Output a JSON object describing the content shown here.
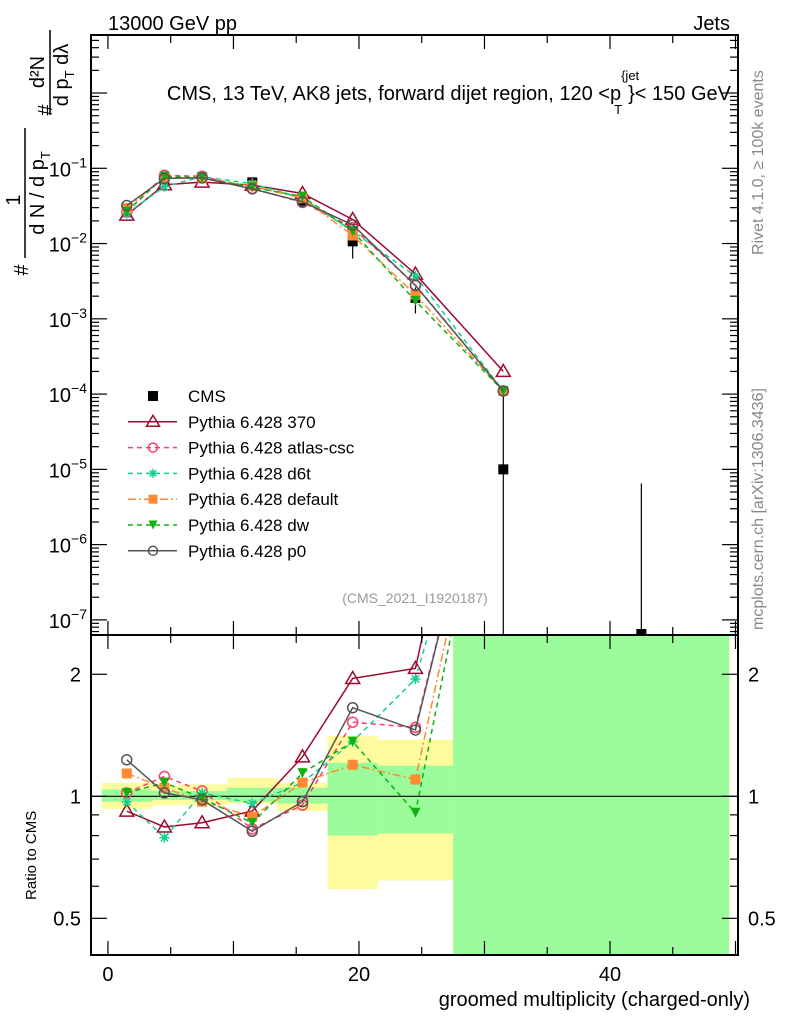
{
  "header": {
    "left": "13000 GeV pp",
    "right": "Jets"
  },
  "side": {
    "rivet": "Rivet 4.1.0, ≥ 100k events",
    "mcplots": "mcplots.cern.ch [arXiv:1306.3436]"
  },
  "analysis_tag": "(CMS_2021_I1920187)",
  "chart_data": {
    "type": "line",
    "title": {
      "pre": "CMS, 13 TeV, AK8 jets, forward dijet region, 120 <p",
      "sup": "{jet",
      "sub": "T",
      "post": "}< 150 GeV"
    },
    "ylabel": {
      "hash1": "#",
      "frac1_num": "1",
      "frac1_den": "d N / d p",
      "frac1_den_sub": "T",
      "hash2": "#",
      "frac2_num": "d²N",
      "frac2_den": "d p",
      "frac2_den_sub": "T",
      "frac2_den_tail": " dλ"
    },
    "xlabel": "groomed multiplicity (charged-only)",
    "ratio_ylabel": "Ratio to CMS",
    "xlim": [
      -1.35,
      50.2
    ],
    "ylim": [
      6.3e-08,
      5.9
    ],
    "yscale": "log",
    "ratio_ylim": [
      0.406,
      2.5
    ],
    "x_ticks": [
      0,
      20,
      40
    ],
    "x_tick_labels": [
      "0",
      "20",
      "40"
    ],
    "y_ticks": [
      {
        "base": "10",
        "exp": "−1",
        "v": 0.1
      },
      {
        "base": "10",
        "exp": "−2",
        "v": 0.01
      },
      {
        "base": "10",
        "exp": "−3",
        "v": 0.001
      },
      {
        "base": "10",
        "exp": "−4",
        "v": 0.0001
      },
      {
        "base": "10",
        "exp": "−5",
        "v": 1e-05
      },
      {
        "base": "10",
        "exp": "−6",
        "v": 1e-06
      },
      {
        "base": "10",
        "exp": "−7",
        "v": 1e-07
      }
    ],
    "ratio_ticks": [
      {
        "v": 2,
        "label": "2"
      },
      {
        "v": 1,
        "label": "1"
      },
      {
        "v": 0.5,
        "label": "0.5"
      }
    ],
    "bin_edges": [
      -0.5,
      3.5,
      5.5,
      9.5,
      13.5,
      17.5,
      21.5,
      27.5,
      35.5,
      49.5
    ],
    "x": [
      1.5,
      4.5,
      7.5,
      11.5,
      15.5,
      19.5,
      24.5,
      31.5,
      42.5
    ],
    "data": {
      "name": "CMS",
      "values": [
        0.026,
        0.072,
        0.076,
        0.065,
        0.037,
        0.0107,
        0.0019,
        1e-05,
        6.5e-08
      ],
      "stat_band": [
        [
          0.97,
          1.04
        ],
        [
          0.98,
          1.03
        ],
        [
          0.98,
          1.03
        ],
        [
          0.97,
          1.05
        ],
        [
          0.96,
          1.05
        ],
        [
          0.8,
          1.21
        ],
        [
          0.81,
          1.19
        ],
        [
          0.0,
          100
        ],
        [
          0.0,
          100
        ]
      ],
      "total_band": [
        [
          0.93,
          1.08
        ],
        [
          0.95,
          1.06
        ],
        [
          0.95,
          1.07
        ],
        [
          0.96,
          1.11
        ],
        [
          0.92,
          1.08
        ],
        [
          0.59,
          1.41
        ],
        [
          0.62,
          1.38
        ],
        [
          0.0,
          11
        ],
        [
          0.0,
          100
        ]
      ]
    },
    "series": [
      {
        "name": "Pythia 6.428 370",
        "color": "#9e0a2e",
        "dash": "",
        "marker": "tri-up-open",
        "values": [
          0.0239,
          0.0605,
          0.0654,
          0.0598,
          0.0463,
          0.0209,
          0.00393,
          0.0002,
          null
        ]
      },
      {
        "name": "Pythia 6.428 atlas-csc",
        "color": "#ff3c6a",
        "dash": "5,4",
        "marker": "circle-open",
        "values": [
          0.0265,
          0.0806,
          0.0783,
          0.054,
          0.0352,
          0.0163,
          0.00281,
          0.00011,
          null
        ]
      },
      {
        "name": "Pythia 6.428 d6t",
        "color": "#12d18e",
        "dash": "5,4",
        "marker": "star",
        "values": [
          0.0252,
          0.0569,
          0.0775,
          0.0624,
          0.04,
          0.0146,
          0.0037,
          0.00011,
          null
        ]
      },
      {
        "name": "Pythia 6.428 default",
        "color": "#ff8a33",
        "dash": "8,3,2,3",
        "marker": "square",
        "values": [
          0.0296,
          0.0756,
          0.0737,
          0.0579,
          0.04,
          0.0128,
          0.00209,
          0.00011,
          null
        ]
      },
      {
        "name": "Pythia 6.428 dw",
        "color": "#12b012",
        "dash": "5,4",
        "marker": "tri-down",
        "values": [
          0.0265,
          0.0778,
          0.0752,
          0.0559,
          0.0422,
          0.0146,
          0.00173,
          0.00011,
          null
        ]
      },
      {
        "name": "Pythia 6.428 p0",
        "color": "#555555",
        "dash": "",
        "marker": "circle-open",
        "values": [
          0.032,
          0.0734,
          0.0745,
          0.0533,
          0.0359,
          0.0177,
          0.00277,
          0.00011,
          null
        ]
      }
    ],
    "colors": {
      "stat_band": "#9cfb9a",
      "total_band": "#fefb9e",
      "data": "#000000"
    },
    "legend_position": "left-middle",
    "grid": false
  }
}
